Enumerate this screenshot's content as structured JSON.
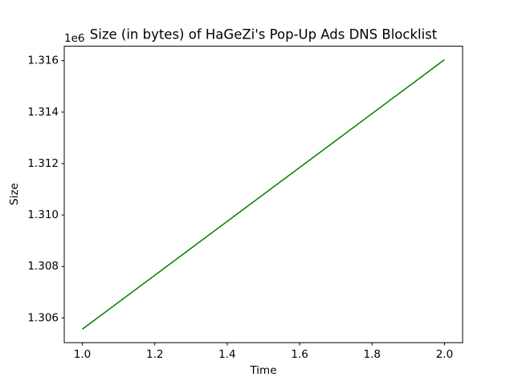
{
  "chart_data": {
    "type": "line",
    "title": "Size (in bytes) of HaGeZi's Pop-Up Ads DNS Blocklist",
    "x_label": "Time",
    "y_label": "Size",
    "y_offset_label": "1e6",
    "x": [
      1,
      2
    ],
    "series": [
      {
        "color": "#008000",
        "values": [
          1305560,
          1316040
        ]
      }
    ],
    "xlim": [
      0.95,
      2.05
    ],
    "xticks": [
      {
        "value": 1,
        "label": "1.0"
      },
      1.2,
      1.4,
      1.6,
      1.8,
      {
        "value": 2,
        "label": "2.0"
      }
    ],
    "ylim": [
      1305036,
      1316564
    ],
    "yticks": [
      {
        "value": 1306000,
        "label": "1.306"
      },
      {
        "value": 1308000,
        "label": "1.308"
      },
      {
        "value": 1310000,
        "label": "1.310"
      },
      {
        "value": 1312000,
        "label": "1.312"
      },
      {
        "value": 1314000,
        "label": "1.314"
      },
      {
        "value": 1316000,
        "label": "1.316"
      }
    ],
    "grid": false
  }
}
